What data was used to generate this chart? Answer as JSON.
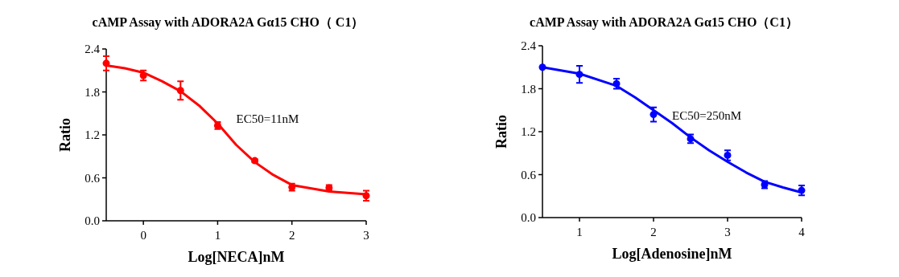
{
  "chart_data": [
    {
      "type": "scatter",
      "title": "cAMP Assay with ADORA2A Gα15 CHO（ C1）",
      "xlabel": "Log[NECA]nM",
      "ylabel": "Ratio",
      "annotations": [
        "EC50=11nM"
      ],
      "x": [
        -0.5,
        0,
        0.5,
        1,
        1.5,
        2,
        2.5,
        3
      ],
      "xlim": [
        -0.5,
        3
      ],
      "xticks": [
        0,
        1,
        2,
        3
      ],
      "ylim": [
        0,
        2.4
      ],
      "yticks": [
        {
          "value": 0,
          "label": "0.0"
        },
        {
          "value": 0.6,
          "label": "0.6"
        },
        {
          "value": 1.2,
          "label": "1.2"
        },
        {
          "value": 1.8,
          "label": "1.8"
        },
        {
          "value": 2.4,
          "label": "2.4"
        }
      ],
      "grid": false,
      "series": [
        {
          "type": "scatter",
          "color": "#ff0000",
          "marker": "circle",
          "values": [
            2.2,
            2.03,
            1.82,
            1.33,
            0.84,
            0.47,
            0.46,
            0.35
          ],
          "errors": [
            0.1,
            0.07,
            0.13,
            0.05,
            0.02,
            0.05,
            0.04,
            0.07
          ]
        },
        {
          "type": "line",
          "color": "#ff0000",
          "x": [
            -0.5,
            -0.25,
            0,
            0.25,
            0.5,
            0.75,
            1,
            1.25,
            1.5,
            1.75,
            2,
            2.5,
            3
          ],
          "values": [
            2.17,
            2.13,
            2.07,
            1.95,
            1.81,
            1.61,
            1.36,
            1.06,
            0.82,
            0.64,
            0.5,
            0.41,
            0.37
          ]
        }
      ]
    },
    {
      "type": "scatter",
      "title": "cAMP Assay with ADORA2A Gα15 CHO（C1）",
      "xlabel": "Log[Adenosine]nM",
      "ylabel": "Ratio",
      "annotations": [
        "EC50=250nM"
      ],
      "x": [
        0.5,
        1,
        1.5,
        2,
        2.5,
        3,
        3.5,
        4
      ],
      "xlim": [
        0.5,
        4
      ],
      "xticks": [
        1,
        2,
        3,
        4
      ],
      "ylim": [
        0,
        2.4
      ],
      "yticks": [
        {
          "value": 0,
          "label": "0.0"
        },
        {
          "value": 0.6,
          "label": "0.6"
        },
        {
          "value": 1.2,
          "label": "1.2"
        },
        {
          "value": 1.8,
          "label": "1.8"
        },
        {
          "value": 2.4,
          "label": "2.4"
        }
      ],
      "grid": false,
      "series": [
        {
          "type": "scatter",
          "color": "#0000ff",
          "marker": "circle",
          "values": [
            2.1,
            2.0,
            1.87,
            1.44,
            1.1,
            0.87,
            0.46,
            0.38
          ],
          "errors": [
            null,
            0.12,
            0.07,
            0.1,
            0.06,
            0.07,
            0.05,
            0.07
          ]
        },
        {
          "type": "line",
          "color": "#0000ff",
          "x": [
            0.5,
            1,
            1.5,
            1.75,
            2,
            2.25,
            2.5,
            2.75,
            3,
            3.25,
            3.5,
            3.75,
            4
          ],
          "values": [
            2.1,
            2.01,
            1.84,
            1.68,
            1.5,
            1.32,
            1.12,
            0.94,
            0.78,
            0.63,
            0.5,
            0.42,
            0.35
          ]
        }
      ]
    }
  ]
}
